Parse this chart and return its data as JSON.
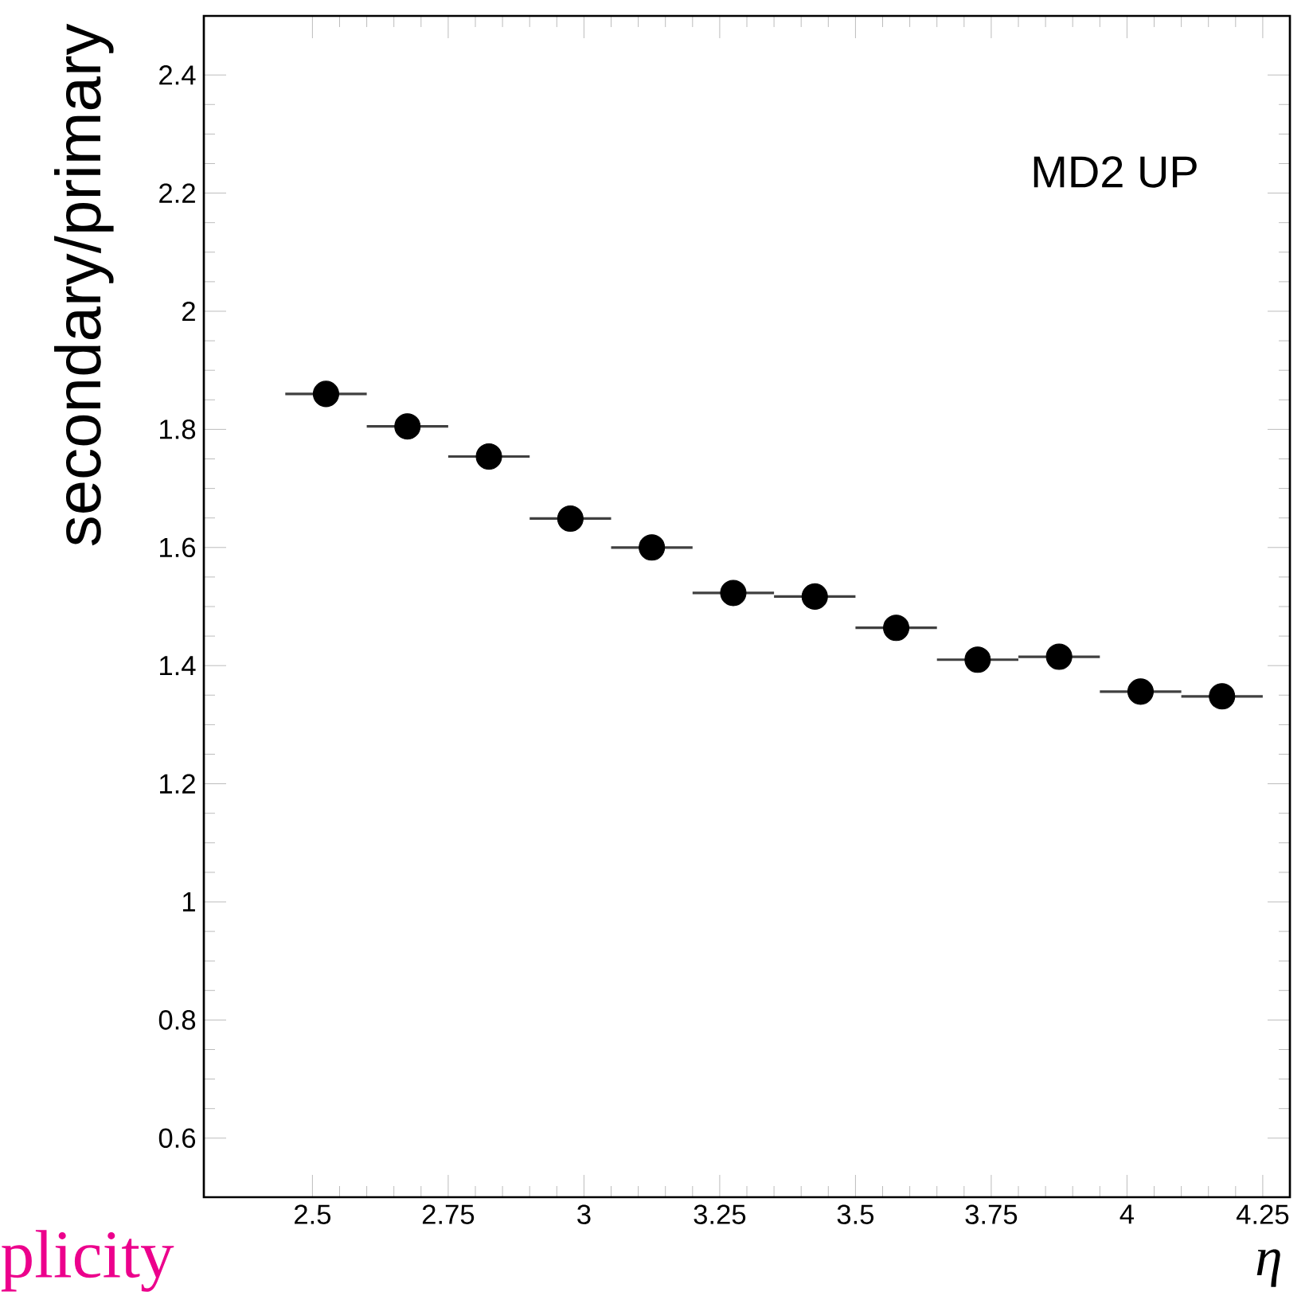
{
  "chart_data": {
    "type": "scatter",
    "x": [
      2.525,
      2.675,
      2.825,
      2.975,
      3.125,
      3.275,
      3.425,
      3.575,
      3.725,
      3.875,
      4.025,
      4.175
    ],
    "series": [
      {
        "color": "#000000",
        "values": [
          1.86,
          1.805,
          1.754,
          1.649,
          1.6,
          1.523,
          1.517,
          1.464,
          1.41,
          1.415,
          1.356,
          1.348
        ],
        "xerrors": [
          0.075,
          0.075,
          0.075,
          0.075,
          0.075,
          0.075,
          0.075,
          0.075,
          0.075,
          0.075,
          0.075,
          0.075
        ]
      }
    ],
    "xlabel": "η",
    "ylabel": "secondary/primary",
    "annotations": [
      "MD2 UP",
      "plicity"
    ],
    "xlim": [
      2.3,
      4.3
    ],
    "ylim": [
      0.5,
      2.5
    ],
    "xticks": [
      2.5,
      2.75,
      3,
      3.25,
      3.5,
      3.75,
      4,
      4.25
    ],
    "yticks": [
      0.6,
      0.8,
      1,
      1.2,
      1.4,
      1.6,
      1.8,
      2,
      2.2,
      2.4
    ],
    "grid": false,
    "marker": "circle"
  }
}
